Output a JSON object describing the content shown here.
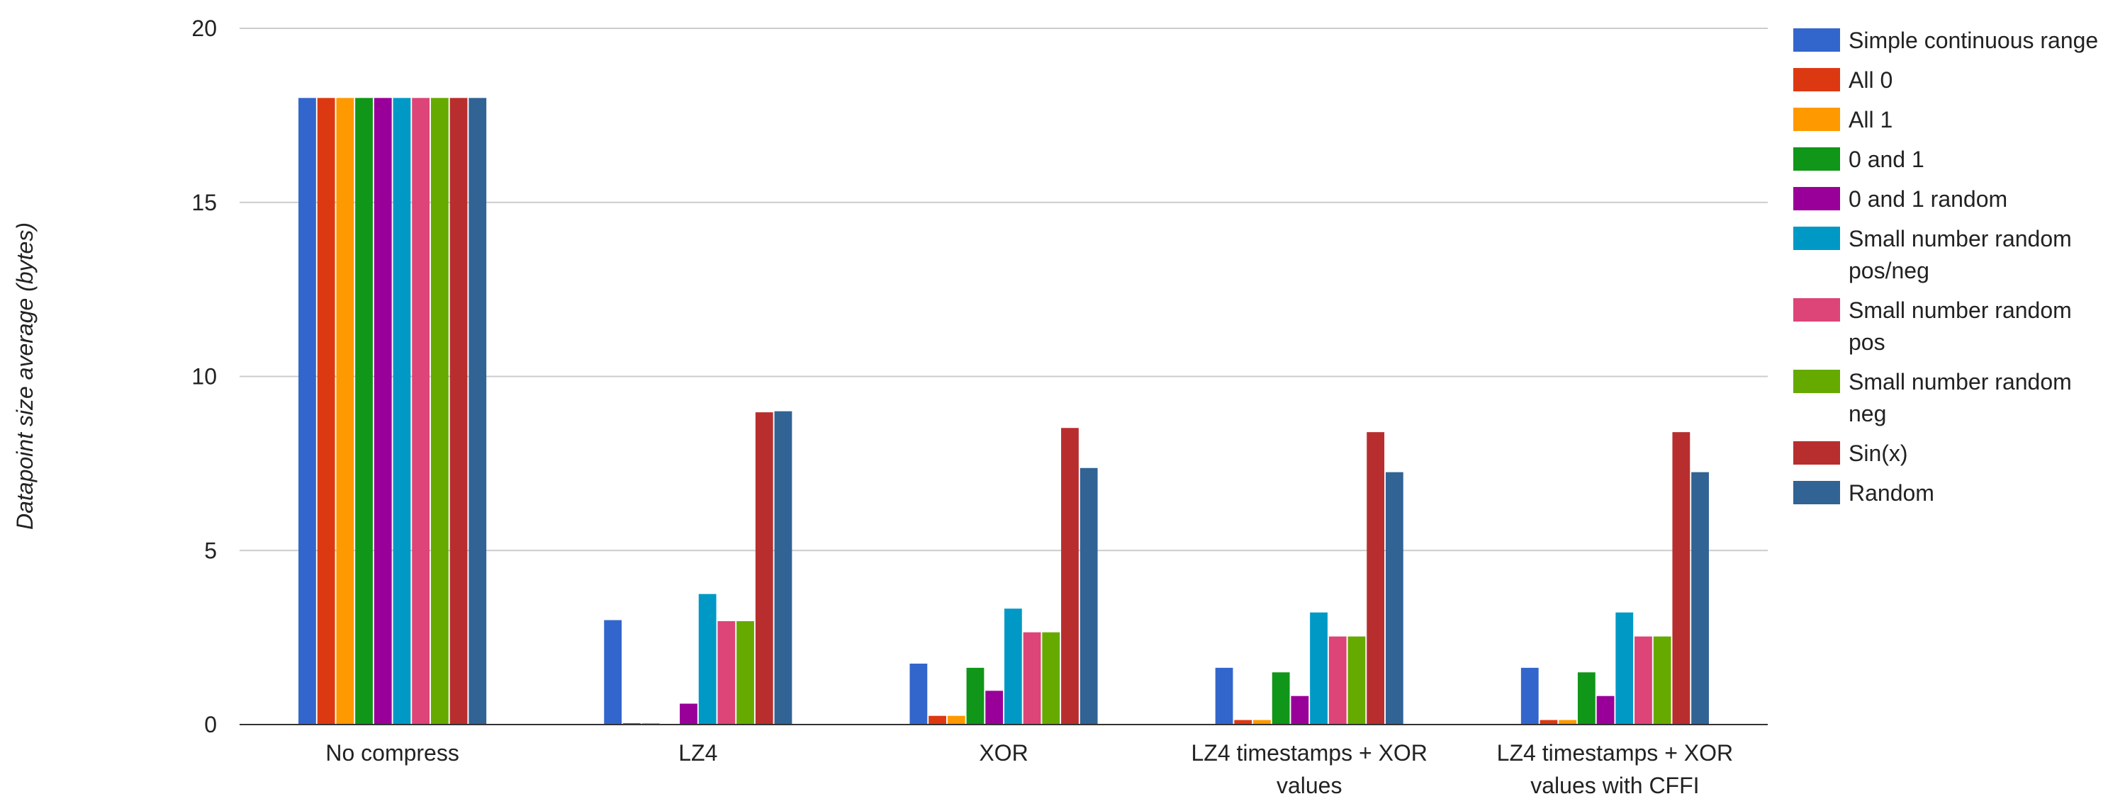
{
  "chart_data": {
    "type": "bar",
    "title": "",
    "xlabel": "",
    "ylabel": "Datapoint size average (bytes)",
    "ylim": [
      0,
      20
    ],
    "yticks": [
      0,
      5,
      10,
      15,
      20
    ],
    "grid": true,
    "legend_position": "right",
    "categories": [
      [
        "No compress"
      ],
      [
        "LZ4"
      ],
      [
        "XOR"
      ],
      [
        "LZ4 timestamps + XOR",
        "values"
      ],
      [
        "LZ4 timestamps + XOR",
        "values with CFFI"
      ]
    ],
    "series": [
      {
        "name": [
          "Simple continuous range"
        ],
        "color": "#3366cc",
        "values": [
          18,
          3.0,
          1.75,
          1.63,
          1.63
        ]
      },
      {
        "name": [
          "All 0"
        ],
        "color": "#dc3912",
        "values": [
          18,
          0.04,
          0.25,
          0.13,
          0.13
        ]
      },
      {
        "name": [
          "All 1"
        ],
        "color": "#ff9900",
        "values": [
          18,
          0.04,
          0.25,
          0.13,
          0.13
        ]
      },
      {
        "name": [
          "0 and 1"
        ],
        "color": "#109618",
        "values": [
          18,
          0.0,
          1.63,
          1.5,
          1.5
        ]
      },
      {
        "name": [
          "0 and 1 random"
        ],
        "color": "#990099",
        "values": [
          18,
          0.6,
          0.97,
          0.82,
          0.82
        ]
      },
      {
        "name": [
          "Small number random",
          "pos/neg"
        ],
        "color": "#0099c6",
        "values": [
          18,
          3.75,
          3.33,
          3.22,
          3.22
        ]
      },
      {
        "name": [
          "Small number random",
          "pos"
        ],
        "color": "#dd4477",
        "values": [
          18,
          2.97,
          2.65,
          2.53,
          2.53
        ]
      },
      {
        "name": [
          "Small number random",
          "neg"
        ],
        "color": "#66aa00",
        "values": [
          18,
          2.97,
          2.65,
          2.53,
          2.53
        ]
      },
      {
        "name": [
          "Sin(x)"
        ],
        "color": "#b82e2e",
        "values": [
          18,
          8.97,
          8.52,
          8.4,
          8.4
        ]
      },
      {
        "name": [
          "Random"
        ],
        "color": "#316395",
        "values": [
          18,
          9.0,
          7.37,
          7.25,
          7.25
        ]
      }
    ]
  }
}
